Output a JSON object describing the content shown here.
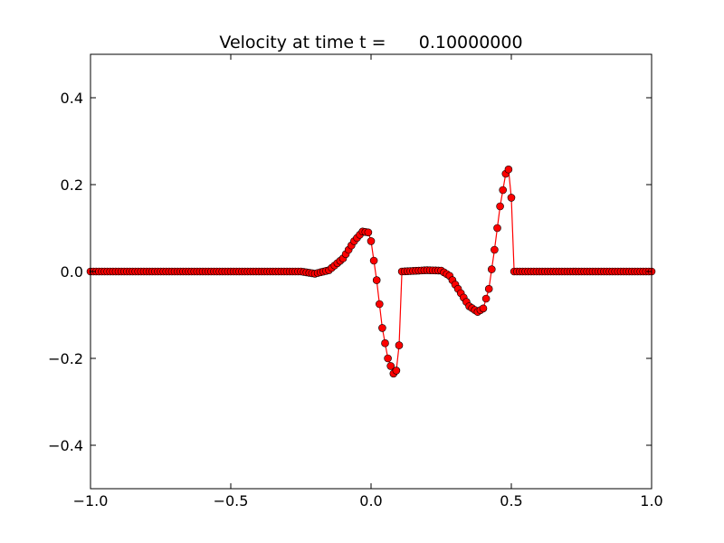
{
  "chart_data": {
    "type": "line",
    "title": "Velocity at time t =      0.10000000",
    "xlabel": "",
    "ylabel": "",
    "xlim": [
      -1.0,
      1.0
    ],
    "ylim": [
      -0.5,
      0.5
    ],
    "x_ticks": [
      -1.0,
      -0.5,
      0.0,
      0.5,
      1.0
    ],
    "x_tick_labels": [
      "−1.0",
      "−0.5",
      "0.0",
      "0.5",
      "1.0"
    ],
    "y_ticks": [
      -0.4,
      -0.2,
      0.0,
      0.2,
      0.4
    ],
    "y_tick_labels": [
      "−0.4",
      "−0.2",
      "0.0",
      "0.2",
      "0.4"
    ],
    "grid": false,
    "series": [
      {
        "line_color": "#ff0000",
        "marker": "circle",
        "marker_face": "#ff0000",
        "marker_edge": "#000000",
        "x_start": -1.0,
        "x_end": 1.0,
        "n_points": 201,
        "x_support": [
          -1.0,
          -0.3,
          -0.25,
          -0.2,
          -0.15,
          -0.1,
          -0.06,
          -0.03,
          -0.01,
          0.0,
          0.02,
          0.04,
          0.06,
          0.08,
          0.09,
          0.1,
          0.11,
          0.14,
          0.2,
          0.25,
          0.28,
          0.32,
          0.35,
          0.38,
          0.4,
          0.42,
          0.44,
          0.46,
          0.48,
          0.49,
          0.5,
          0.505,
          0.51,
          1.0
        ],
        "y_support": [
          0.0,
          0.0,
          0.0,
          -0.005,
          0.003,
          0.03,
          0.07,
          0.092,
          0.09,
          0.07,
          -0.02,
          -0.13,
          -0.2,
          -0.235,
          -0.228,
          -0.17,
          0.0,
          0.001,
          0.003,
          0.002,
          -0.01,
          -0.05,
          -0.08,
          -0.093,
          -0.085,
          -0.04,
          0.05,
          0.15,
          0.225,
          0.235,
          0.17,
          0.075,
          0.0,
          0.0
        ]
      }
    ]
  }
}
